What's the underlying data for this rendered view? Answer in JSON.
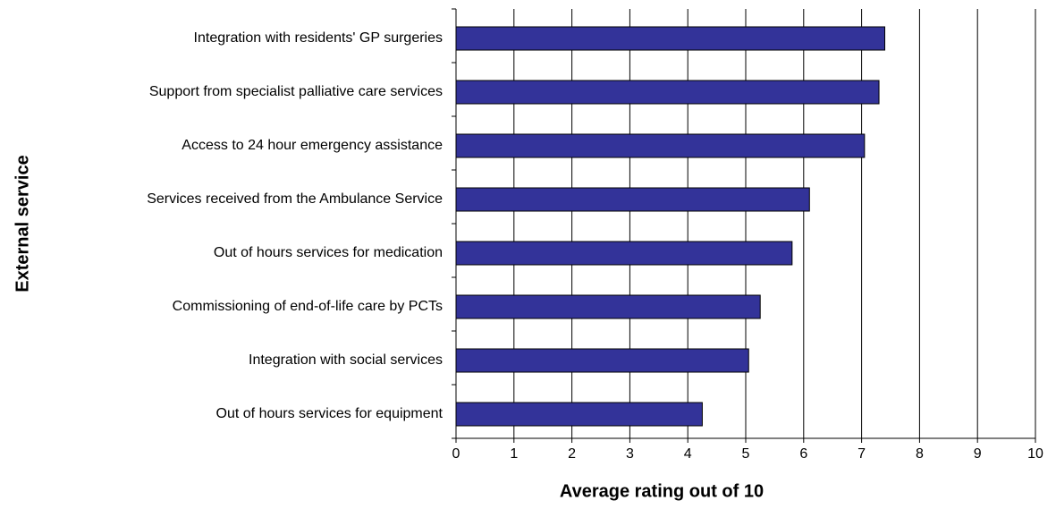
{
  "chart_data": {
    "type": "bar",
    "orientation": "horizontal",
    "xlabel": "Average rating out of 10",
    "ylabel": "External service",
    "categories": [
      "Integration with residents' GP surgeries",
      "Support from specialist palliative care services",
      "Access to 24 hour emergency assistance",
      "Services received from the Ambulance Service",
      "Out of hours services for medication",
      "Commissioning of end-of-life care by PCTs",
      "Integration with social services",
      "Out of hours services for equipment"
    ],
    "values": [
      7.4,
      7.3,
      7.05,
      6.1,
      5.8,
      5.25,
      5.05,
      4.25
    ],
    "color": "#333399",
    "xlim": [
      0,
      10
    ],
    "xticks": [
      0,
      1,
      2,
      3,
      4,
      5,
      6,
      7,
      8,
      9,
      10
    ],
    "grid": true
  }
}
